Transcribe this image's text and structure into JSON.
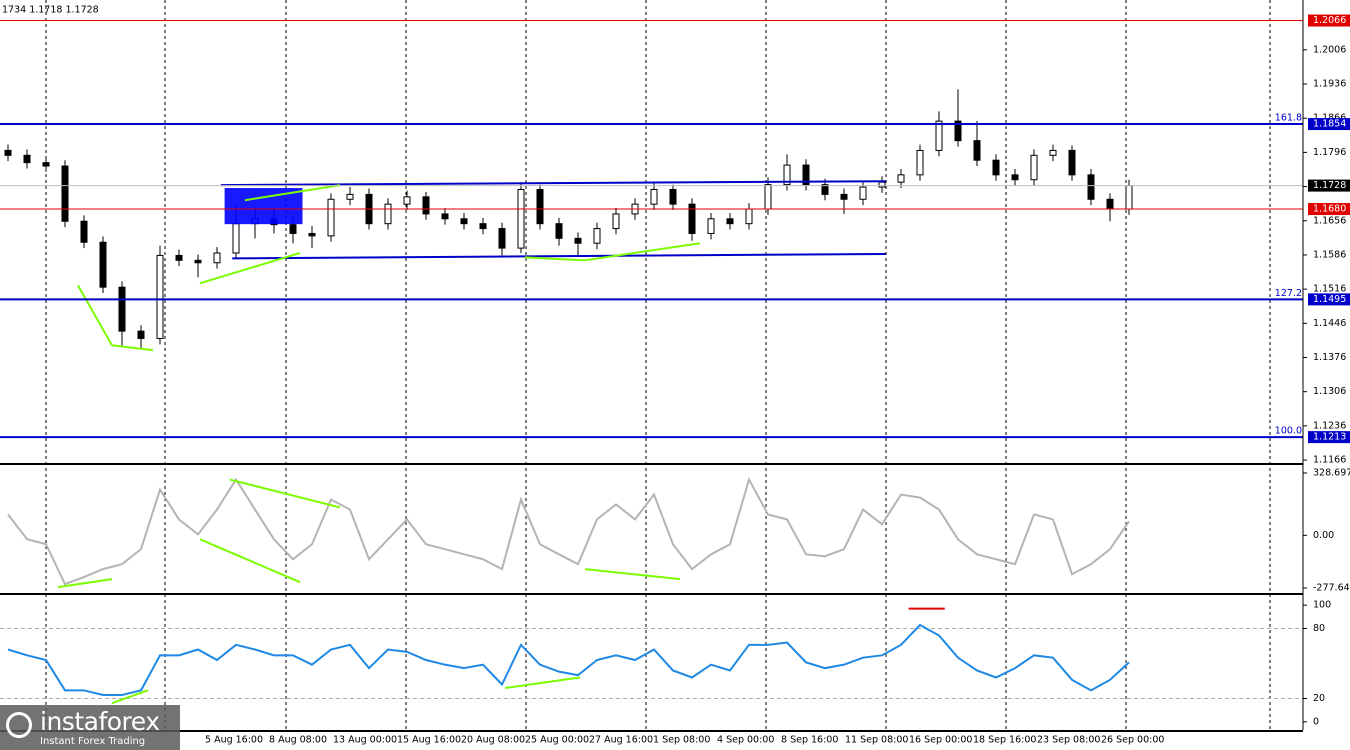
{
  "chart_data": [
    {
      "type": "candlestick",
      "info": "1734 1.1718 1.1728",
      "color": "#000000",
      "open": [
        1.18,
        1.179,
        1.1775,
        1.1768,
        1.1655,
        1.1612,
        1.152,
        1.143,
        1.1415,
        1.1585,
        1.1575,
        1.157,
        1.159,
        1.165,
        1.166,
        1.1648,
        1.163,
        1.1625,
        1.17,
        1.171,
        1.165,
        1.169,
        1.1705,
        1.167,
        1.166,
        1.165,
        1.164,
        1.16,
        1.172,
        1.165,
        1.162,
        1.161,
        1.164,
        1.167,
        1.169,
        1.172,
        1.169,
        1.163,
        1.166,
        1.165,
        1.168,
        1.173,
        1.177,
        1.173,
        1.171,
        1.17,
        1.1725,
        1.1735,
        1.175,
        1.18,
        1.186,
        1.182,
        1.178,
        1.175,
        1.174,
        1.179,
        1.18,
        1.175,
        1.17,
        1.168
      ],
      "high": [
        1.1812,
        1.1802,
        1.1787,
        1.178,
        1.1667,
        1.1624,
        1.1532,
        1.1442,
        1.1605,
        1.1597,
        1.1587,
        1.1602,
        1.169,
        1.1685,
        1.168,
        1.1665,
        1.1645,
        1.1712,
        1.1725,
        1.1722,
        1.1702,
        1.1718,
        1.1715,
        1.1682,
        1.1672,
        1.1662,
        1.1652,
        1.1735,
        1.173,
        1.1662,
        1.1632,
        1.1652,
        1.1682,
        1.1702,
        1.1735,
        1.173,
        1.1702,
        1.1672,
        1.1672,
        1.1692,
        1.1745,
        1.1792,
        1.1782,
        1.1742,
        1.1722,
        1.1737,
        1.1747,
        1.1762,
        1.1812,
        1.188,
        1.1925,
        1.186,
        1.1792,
        1.1762,
        1.1802,
        1.1812,
        1.181,
        1.1762,
        1.1712,
        1.174
      ],
      "low": [
        1.1778,
        1.1763,
        1.1756,
        1.1643,
        1.16,
        1.1508,
        1.14,
        1.1395,
        1.1403,
        1.1563,
        1.154,
        1.1558,
        1.1578,
        1.162,
        1.163,
        1.161,
        1.16,
        1.1613,
        1.1688,
        1.1638,
        1.1638,
        1.1678,
        1.1658,
        1.1648,
        1.1638,
        1.1628,
        1.1585,
        1.159,
        1.1638,
        1.1605,
        1.1585,
        1.1598,
        1.1628,
        1.1658,
        1.1678,
        1.1678,
        1.1615,
        1.1618,
        1.1638,
        1.1638,
        1.1668,
        1.1718,
        1.1718,
        1.1698,
        1.167,
        1.1688,
        1.1713,
        1.1723,
        1.1738,
        1.1788,
        1.1808,
        1.1768,
        1.1738,
        1.1728,
        1.1728,
        1.1778,
        1.1738,
        1.1688,
        1.1655,
        1.1668
      ],
      "close": [
        1.179,
        1.1775,
        1.1768,
        1.1655,
        1.1612,
        1.152,
        1.143,
        1.1415,
        1.1585,
        1.1575,
        1.157,
        1.159,
        1.165,
        1.166,
        1.1648,
        1.163,
        1.1625,
        1.17,
        1.171,
        1.165,
        1.169,
        1.1705,
        1.167,
        1.166,
        1.165,
        1.164,
        1.16,
        1.172,
        1.165,
        1.162,
        1.161,
        1.164,
        1.167,
        1.169,
        1.172,
        1.169,
        1.163,
        1.166,
        1.165,
        1.168,
        1.173,
        1.177,
        1.173,
        1.171,
        1.17,
        1.1725,
        1.1735,
        1.175,
        1.18,
        1.186,
        1.182,
        1.178,
        1.175,
        1.174,
        1.179,
        1.18,
        1.175,
        1.17,
        1.168,
        1.1728
      ],
      "ylim": [
        1.116,
        1.2108
      ],
      "yticks": [
        1.2006,
        1.1936,
        1.1866,
        1.1796,
        1.1726,
        1.1656,
        1.1586,
        1.1516,
        1.1446,
        1.1376,
        1.1306,
        1.1236,
        1.1166
      ],
      "levels": [
        {
          "value": 1.2066,
          "label": "1.2066",
          "color": "#e00000"
        },
        {
          "value": 1.1854,
          "label": "1.1854",
          "fib": "161.8",
          "color": "#0000c8"
        },
        {
          "value": 1.1728,
          "label": "1.1728",
          "color": "#c0c0c0",
          "box": "#000000"
        },
        {
          "value": 1.168,
          "label": "1.1680",
          "color": "#e00000"
        },
        {
          "value": 1.1495,
          "label": "1.1495",
          "fib": "127.2",
          "color": "#0000c8"
        },
        {
          "value": 1.1213,
          "label": "1.1213",
          "fib": "100.0",
          "color": "#0000c8"
        }
      ],
      "zones": [
        {
          "x": [
            11.4,
            15.5
          ],
          "y": [
            1.1723,
            1.1649
          ],
          "color": "#0000ff"
        }
      ],
      "lines": [
        {
          "x": [
            11.2,
            46.2
          ],
          "y": [
            1.1729,
            1.1737
          ],
          "color": "#0000c8"
        },
        {
          "x": [
            11.8,
            46.2
          ],
          "y": [
            1.1579,
            1.1588
          ],
          "color": "#0000c8"
        },
        {
          "x": [
            3.68,
            5.47
          ],
          "y": [
            1.1524,
            1.1401
          ],
          "color": "#7cfc00"
        },
        {
          "x": [
            5.47,
            7.63
          ],
          "y": [
            1.1401,
            1.1391
          ],
          "color": "#7cfc00"
        },
        {
          "x": [
            10.1,
            15.37
          ],
          "y": [
            1.1528,
            1.159
          ],
          "color": "#7cfc00"
        },
        {
          "x": [
            12.47,
            17.47
          ],
          "y": [
            1.1698,
            1.1729
          ],
          "color": "#7cfc00"
        },
        {
          "x": [
            27.2,
            30.37
          ],
          "y": [
            1.1581,
            1.1575
          ],
          "color": "#7cfc00"
        },
        {
          "x": [
            30.37,
            36.42
          ],
          "y": [
            1.1575,
            1.161
          ],
          "color": "#7cfc00"
        }
      ],
      "xtick_labels": [
        "5 Aug 16:00",
        "8 Aug 08:00",
        "13 Aug 00:00",
        "15 Aug 16:00",
        "20 Aug 08:00",
        "25 Aug 00:00",
        "27 Aug 16:00",
        "1 Sep 08:00",
        "4 Sep 00:00",
        "8 Sep 16:00",
        "11 Sep 08:00",
        "16 Sep 00:00",
        "18 Sep 16:00",
        "23 Sep 08:00",
        "26 Sep 00:00"
      ]
    },
    {
      "type": "line",
      "color": "#b4b4b4",
      "values": [
        110,
        -20,
        -47,
        -257,
        -220,
        -178,
        -152,
        -73,
        241,
        84,
        5,
        136,
        294,
        136,
        -21,
        -126,
        -47,
        189,
        136,
        -126,
        -21,
        84,
        -47,
        -73,
        -100,
        -126,
        -178,
        189,
        -47,
        -100,
        -152,
        84,
        163,
        84,
        215,
        -47,
        -178,
        -100,
        -47,
        294,
        110,
        84,
        -100,
        -110,
        -73,
        136,
        58,
        215,
        199,
        136,
        -21,
        -100,
        -126,
        -152,
        110,
        84,
        -205,
        -152,
        -73,
        74
      ],
      "ylim": [
        -303.9,
        370.7
      ],
      "yticks": [
        328.6976,
        {
          "value": 0,
          "label": "0.00"
        },
        -277.6449
      ],
      "lines": [
        {
          "x": [
            2.63,
            5.47
          ],
          "y": [
            -273,
            -231
          ],
          "color": "#7cfc00"
        },
        {
          "x": [
            10.11,
            15.37
          ],
          "y": [
            -21,
            -247
          ],
          "color": "#7cfc00"
        },
        {
          "x": [
            11.68,
            17.47
          ],
          "y": [
            294,
            147
          ],
          "color": "#7cfc00"
        },
        {
          "x": [
            30.37,
            35.37
          ],
          "y": [
            -178,
            -231
          ],
          "color": "#7cfc00"
        }
      ]
    },
    {
      "type": "line",
      "color": "#1e88e5",
      "grid": true,
      "values": [
        62,
        57,
        53,
        27,
        27,
        23,
        23,
        27,
        57,
        57,
        62,
        53,
        66,
        62,
        57,
        57,
        49,
        62,
        66,
        46,
        62,
        60,
        53,
        49,
        46,
        49,
        32,
        66,
        49,
        43,
        40,
        53,
        57,
        53,
        62,
        44,
        38,
        49,
        44,
        66,
        66,
        68,
        51,
        46,
        49,
        55,
        57,
        66,
        83,
        74,
        55,
        44,
        38,
        46,
        57,
        55,
        36,
        27,
        36,
        51
      ],
      "ylim": [
        -7,
        107
      ],
      "yticks": [
        100,
        80,
        20,
        0
      ],
      "lines": [
        {
          "x": [
            5.47,
            7.37
          ],
          "y": [
            16,
            27
          ],
          "color": "#7cfc00"
        },
        {
          "x": [
            26.16,
            30.1
          ],
          "y": [
            29,
            38
          ],
          "color": "#7cfc00"
        },
        {
          "x": [
            47.4,
            49.3
          ],
          "y": [
            97,
            97
          ],
          "color": "#e00000"
        }
      ]
    }
  ],
  "branding": {
    "name": "instaforex",
    "tagline": "Instant Forex Trading"
  }
}
